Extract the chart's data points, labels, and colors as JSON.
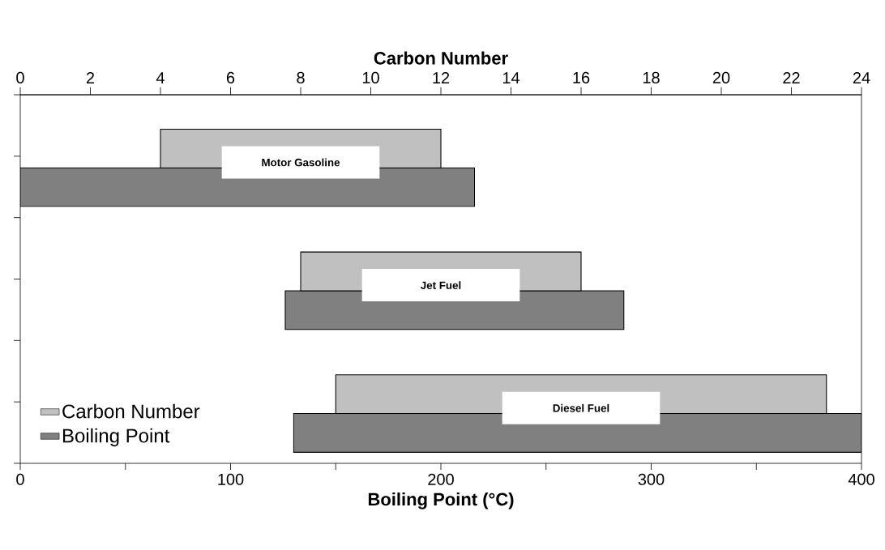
{
  "chart_data": {
    "type": "bar",
    "orientation": "horizontal",
    "categories": [
      "Motor Gasoline",
      "Jet Fuel",
      "Diesel Fuel"
    ],
    "series": [
      {
        "name": "Carbon Number",
        "color": "#c0c0c0",
        "axis": "x2",
        "base": [
          4,
          8,
          9
        ],
        "values": [
          8,
          8,
          14
        ]
      },
      {
        "name": "Boiling Point",
        "color": "#808080",
        "base": [
          0,
          126,
          130
        ],
        "values": [
          216,
          161,
          270
        ]
      }
    ],
    "xlabel": "Boiling Point (°C)",
    "x2label": "Carbon Number",
    "xlim": [
      0,
      400
    ],
    "xticks": [
      0,
      {
        "value": 50,
        "label": null
      },
      100,
      {
        "value": 150,
        "label": null
      },
      200,
      {
        "value": 250,
        "label": null
      },
      300,
      {
        "value": 350,
        "label": null
      },
      400
    ],
    "x2lim": [
      0,
      24
    ],
    "x2ticks": [
      0,
      2,
      4,
      6,
      8,
      10,
      12,
      14,
      16,
      18,
      20,
      22,
      24
    ],
    "legend": "bottom left"
  }
}
